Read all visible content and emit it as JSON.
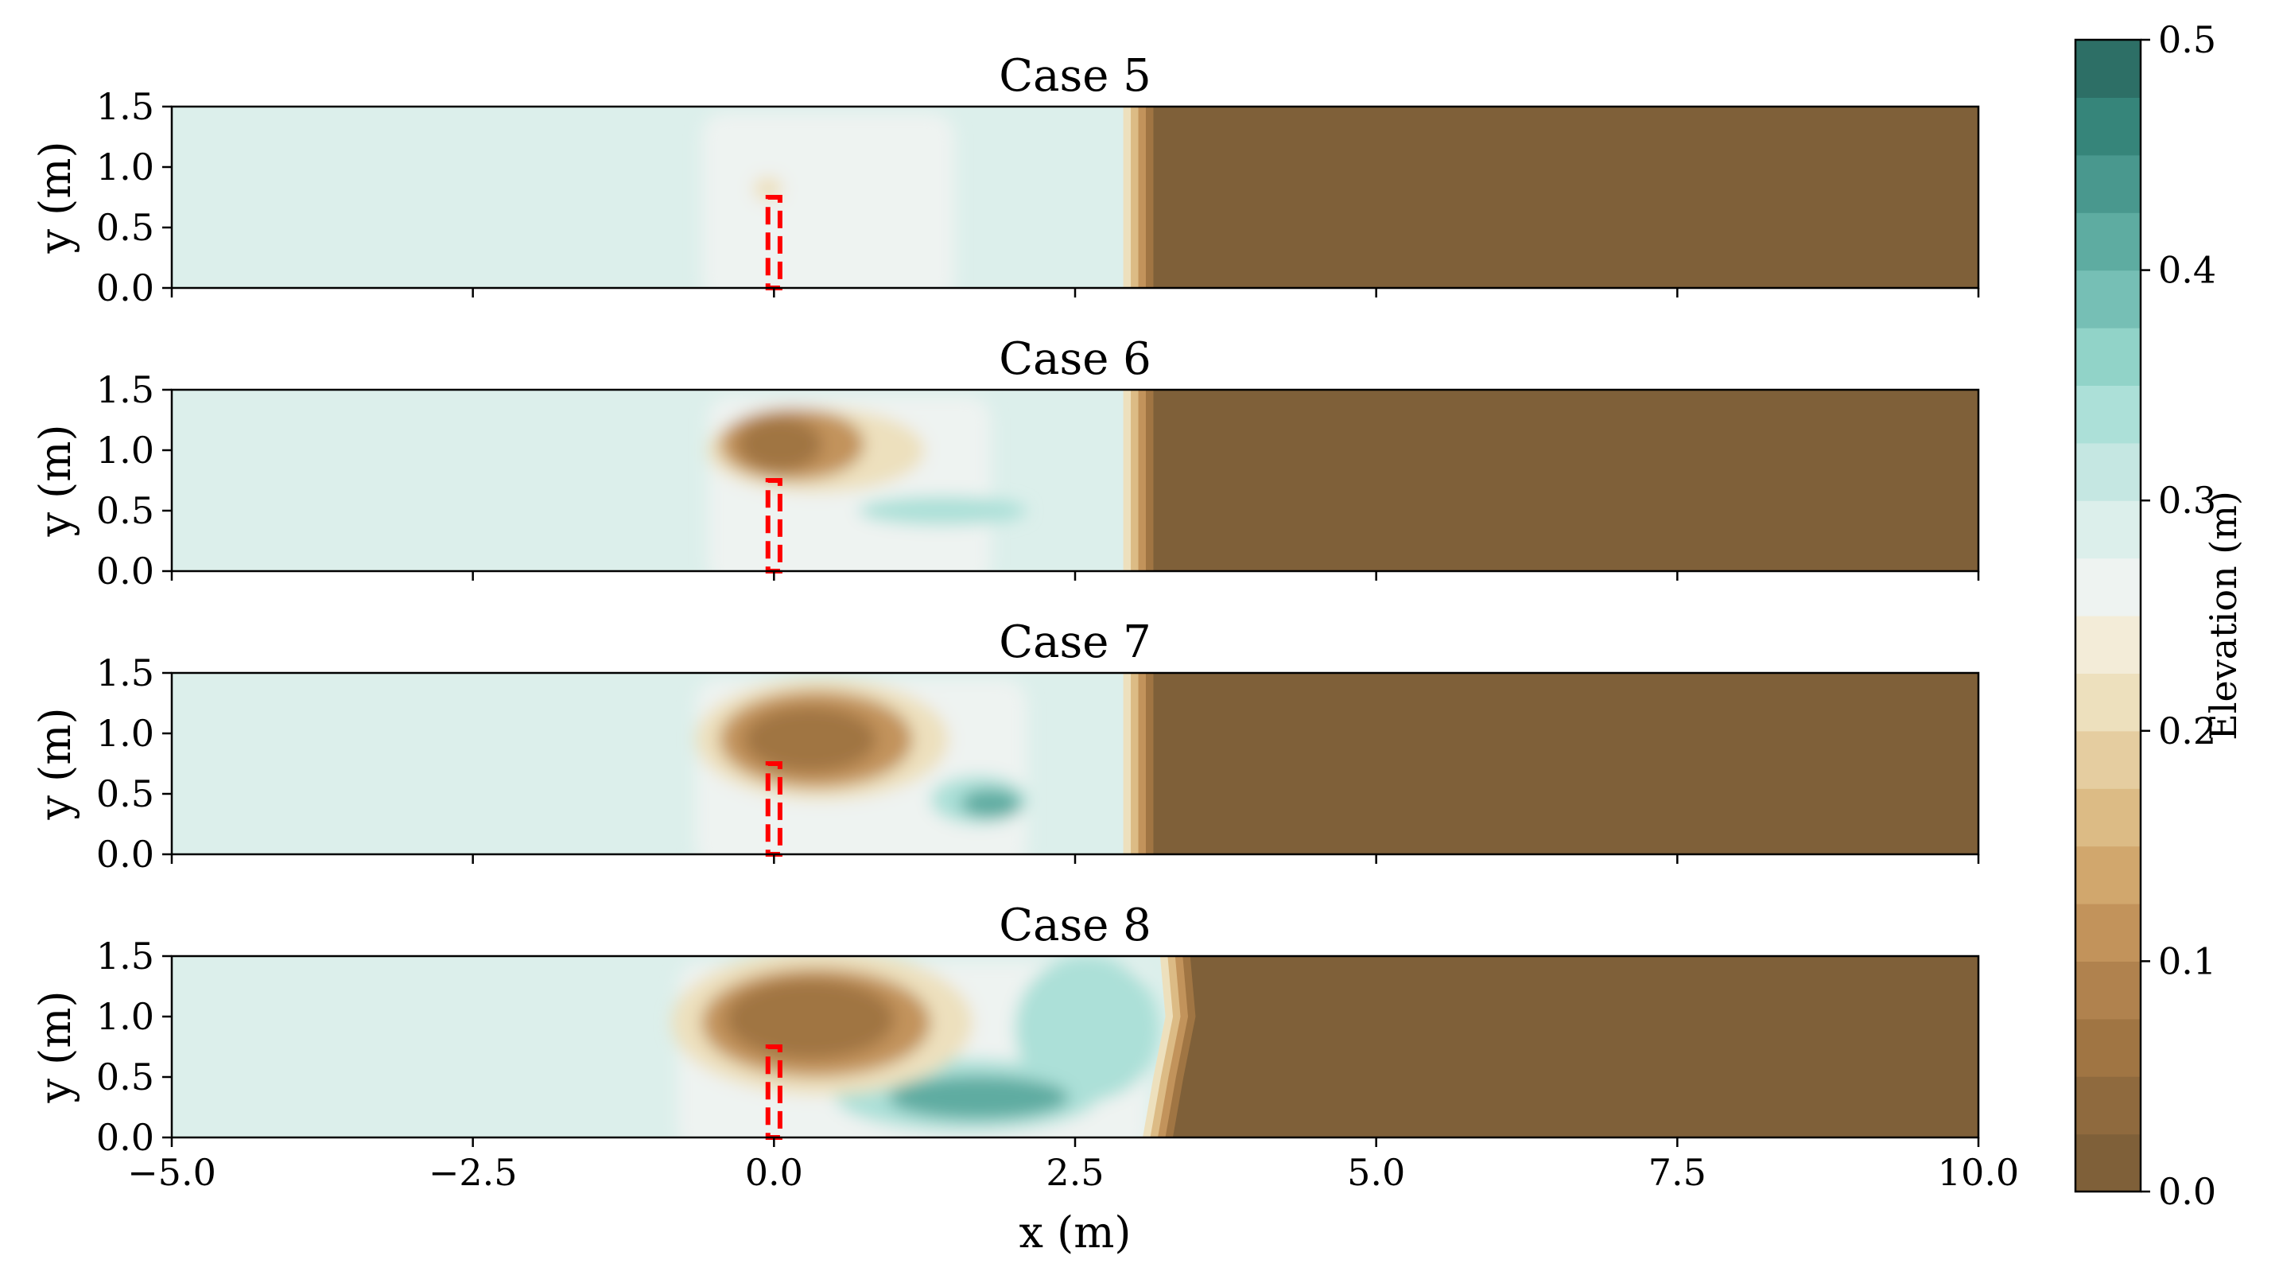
{
  "chart_data": {
    "type": "heatmap",
    "panels": [
      {
        "title": "Case 5",
        "ylabel": "y (m)",
        "yticks": [
          "0.0",
          "0.5",
          "1.0",
          "1.5"
        ],
        "features": [
          {
            "kind": "region",
            "x": [
              -0.6,
              1.5
            ],
            "y": [
              0.0,
              1.45
            ],
            "elevation": 0.27
          },
          {
            "kind": "blob",
            "cx": -0.05,
            "cy": 0.82,
            "rx": 0.12,
            "ry": 0.1,
            "elevation": 0.2
          }
        ],
        "shore": [
          {
            "y": 0.0,
            "x": 3.15
          },
          {
            "y": 1.5,
            "x": 3.15
          }
        ]
      },
      {
        "title": "Case 6",
        "ylabel": "y (m)",
        "yticks": [
          "0.0",
          "0.5",
          "1.0",
          "1.5"
        ],
        "features": [
          {
            "kind": "region",
            "x": [
              -0.55,
              1.8
            ],
            "y": [
              0.0,
              1.45
            ],
            "elevation": 0.27
          },
          {
            "kind": "blob",
            "cx": 0.35,
            "cy": 1.0,
            "rx": 0.9,
            "ry": 0.35,
            "elevation": 0.2
          },
          {
            "kind": "blob",
            "cx": 0.15,
            "cy": 1.05,
            "rx": 0.6,
            "ry": 0.3,
            "elevation": 0.12
          },
          {
            "kind": "blob",
            "cx": 0.05,
            "cy": 1.05,
            "rx": 0.35,
            "ry": 0.22,
            "elevation": 0.05
          },
          {
            "kind": "blob",
            "cx": 1.4,
            "cy": 0.5,
            "rx": 0.7,
            "ry": 0.12,
            "elevation": 0.33
          }
        ],
        "shore": [
          {
            "y": 0.0,
            "x": 3.15
          },
          {
            "y": 1.5,
            "x": 3.15
          }
        ]
      },
      {
        "title": "Case 7",
        "ylabel": "y (m)",
        "yticks": [
          "0.0",
          "0.5",
          "1.0",
          "1.5"
        ],
        "features": [
          {
            "kind": "region",
            "x": [
              -0.65,
              2.1
            ],
            "y": [
              0.0,
              1.45
            ],
            "elevation": 0.27
          },
          {
            "kind": "blob",
            "cx": 0.4,
            "cy": 0.95,
            "rx": 1.05,
            "ry": 0.5,
            "elevation": 0.2
          },
          {
            "kind": "blob",
            "cx": 0.35,
            "cy": 0.95,
            "rx": 0.8,
            "ry": 0.4,
            "elevation": 0.12
          },
          {
            "kind": "blob",
            "cx": 0.3,
            "cy": 0.95,
            "rx": 0.55,
            "ry": 0.27,
            "elevation": 0.05
          },
          {
            "kind": "blob",
            "cx": 1.7,
            "cy": 0.45,
            "rx": 0.4,
            "ry": 0.2,
            "elevation": 0.33
          },
          {
            "kind": "blob",
            "cx": 1.8,
            "cy": 0.42,
            "rx": 0.25,
            "ry": 0.12,
            "elevation": 0.4
          }
        ],
        "shore": [
          {
            "y": 0.0,
            "x": 3.15
          },
          {
            "y": 1.5,
            "x": 3.15
          }
        ]
      },
      {
        "title": "Case 8",
        "ylabel": "y (m)",
        "yticks": [
          "0.0",
          "0.5",
          "1.0",
          "1.5"
        ],
        "features": [
          {
            "kind": "region",
            "x": [
              -0.8,
              3.1
            ],
            "y": [
              0.0,
              1.45
            ],
            "elevation": 0.27
          },
          {
            "kind": "blob",
            "cx": 2.6,
            "cy": 0.9,
            "rx": 0.6,
            "ry": 0.6,
            "elevation": 0.33
          },
          {
            "kind": "blob",
            "cx": 1.6,
            "cy": 0.35,
            "rx": 1.1,
            "ry": 0.3,
            "elevation": 0.33
          },
          {
            "kind": "blob",
            "cx": 1.7,
            "cy": 0.33,
            "rx": 0.75,
            "ry": 0.18,
            "elevation": 0.4
          },
          {
            "kind": "blob",
            "cx": 0.4,
            "cy": 0.95,
            "rx": 1.25,
            "ry": 0.6,
            "elevation": 0.2
          },
          {
            "kind": "blob",
            "cx": 0.35,
            "cy": 0.95,
            "rx": 0.95,
            "ry": 0.45,
            "elevation": 0.12
          },
          {
            "kind": "blob",
            "cx": 0.3,
            "cy": 0.98,
            "rx": 0.7,
            "ry": 0.33,
            "elevation": 0.05
          }
        ],
        "shore": [
          {
            "y": 0.0,
            "x": 3.3
          },
          {
            "y": 0.5,
            "x": 3.4
          },
          {
            "y": 1.0,
            "x": 3.5
          },
          {
            "y": 1.5,
            "x": 3.45
          }
        ]
      }
    ],
    "background_elevation": 0.29,
    "land_elevation": 0.0,
    "structure": {
      "x": [
        -0.05,
        0.05
      ],
      "y": [
        0.0,
        0.75
      ],
      "color": "#ff0000",
      "style": "dashed"
    },
    "xlabel": "x (m)",
    "xlim": [
      -5.0,
      10.0
    ],
    "ylim": [
      0.0,
      1.5
    ],
    "xticks": [
      "−5.0",
      "−2.5",
      "0.0",
      "2.5",
      "5.0",
      "7.5",
      "10.0"
    ],
    "colorbar": {
      "label": "Elevation (m)",
      "range": [
        0.0,
        0.5
      ],
      "levels": 20,
      "ticks": [
        "0.0",
        "0.1",
        "0.2",
        "0.3",
        "0.4",
        "0.5"
      ],
      "colors": [
        "#7f6039",
        "#8f6a3e",
        "#a07543",
        "#b0824e",
        "#c2935b",
        "#d1a76d",
        "#dcbb85",
        "#e5cda0",
        "#ede0bd",
        "#f3ecd8",
        "#eef3f1",
        "#dcefeb",
        "#c5e7e2",
        "#ace0d8",
        "#91d3c8",
        "#76bfb5",
        "#5eaca1",
        "#49988e",
        "#36857a",
        "#2d6f66"
      ]
    }
  }
}
